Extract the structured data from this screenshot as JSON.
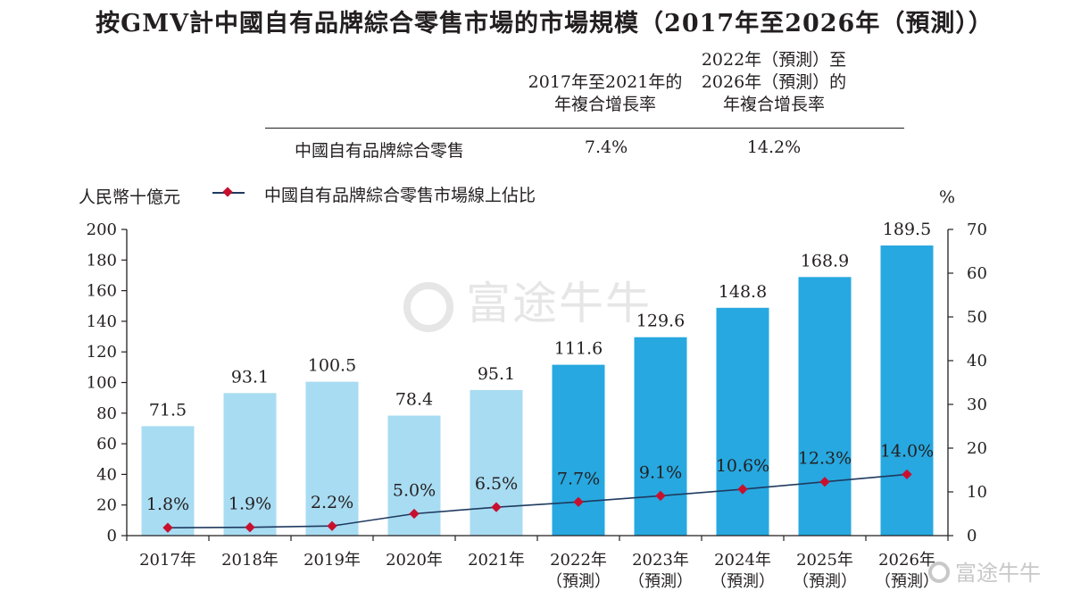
{
  "title": "按GMV計中國自有品牌綜合零售市場的市場規模（2017年至2026年（預測））",
  "cagr_table": {
    "header_1": "2017年至2021年的\n年複合增長率",
    "header_2": "2022年（預測）至\n2026年（預測）的\n年複合增長率",
    "row_label": "中國自有品牌綜合零售",
    "value_1": "7.4%",
    "value_2": "14.2%"
  },
  "watermark": "富途牛牛",
  "corner_watermark": "富途牛牛",
  "chart_data": {
    "type": "bar",
    "categories": [
      "2017年",
      "2018年",
      "2019年",
      "2020年",
      "2021年",
      "2022年\n（預測）",
      "2023年\n（預測）",
      "2024年\n（預測）",
      "2025年\n（預測）",
      "2026年\n（預測）"
    ],
    "ylabel": "人民幣十億元",
    "y2label": "%",
    "ylim": [
      0,
      200
    ],
    "yticks": [
      0,
      20,
      40,
      60,
      80,
      100,
      120,
      140,
      160,
      180,
      200
    ],
    "y2lim": [
      0,
      70
    ],
    "y2ticks": [
      0,
      10,
      20,
      30,
      40,
      50,
      60,
      70
    ],
    "series": [
      {
        "name": "",
        "type": "bar",
        "axis": "left",
        "values": [
          71.5,
          93.1,
          100.5,
          78.4,
          95.1,
          111.6,
          129.6,
          148.8,
          168.9,
          189.5
        ],
        "labels": [
          "71.5",
          "93.1",
          "100.5",
          "78.4",
          "95.1",
          "111.6",
          "129.6",
          "148.8",
          "168.9",
          "189.5"
        ],
        "forecast": [
          false,
          false,
          false,
          false,
          false,
          true,
          true,
          true,
          true,
          true
        ]
      },
      {
        "name": "中國自有品牌綜合零售市場線上佔比",
        "type": "line",
        "axis": "right",
        "values": [
          1.8,
          1.9,
          2.2,
          5.0,
          6.5,
          7.7,
          9.1,
          10.6,
          12.3,
          14.0
        ],
        "labels": [
          "1.8%",
          "1.9%",
          "2.2%",
          "5.0%",
          "6.5%",
          "7.7%",
          "9.1%",
          "10.6%",
          "12.3%",
          "14.0%"
        ]
      }
    ],
    "colors": {
      "historical_bar": "#a8dcf2",
      "forecast_bar": "#27a8e0",
      "line": "#1f3a5f",
      "marker": "#c8102e",
      "axis": "#231f20"
    },
    "grid": false,
    "legend": "top-left"
  }
}
